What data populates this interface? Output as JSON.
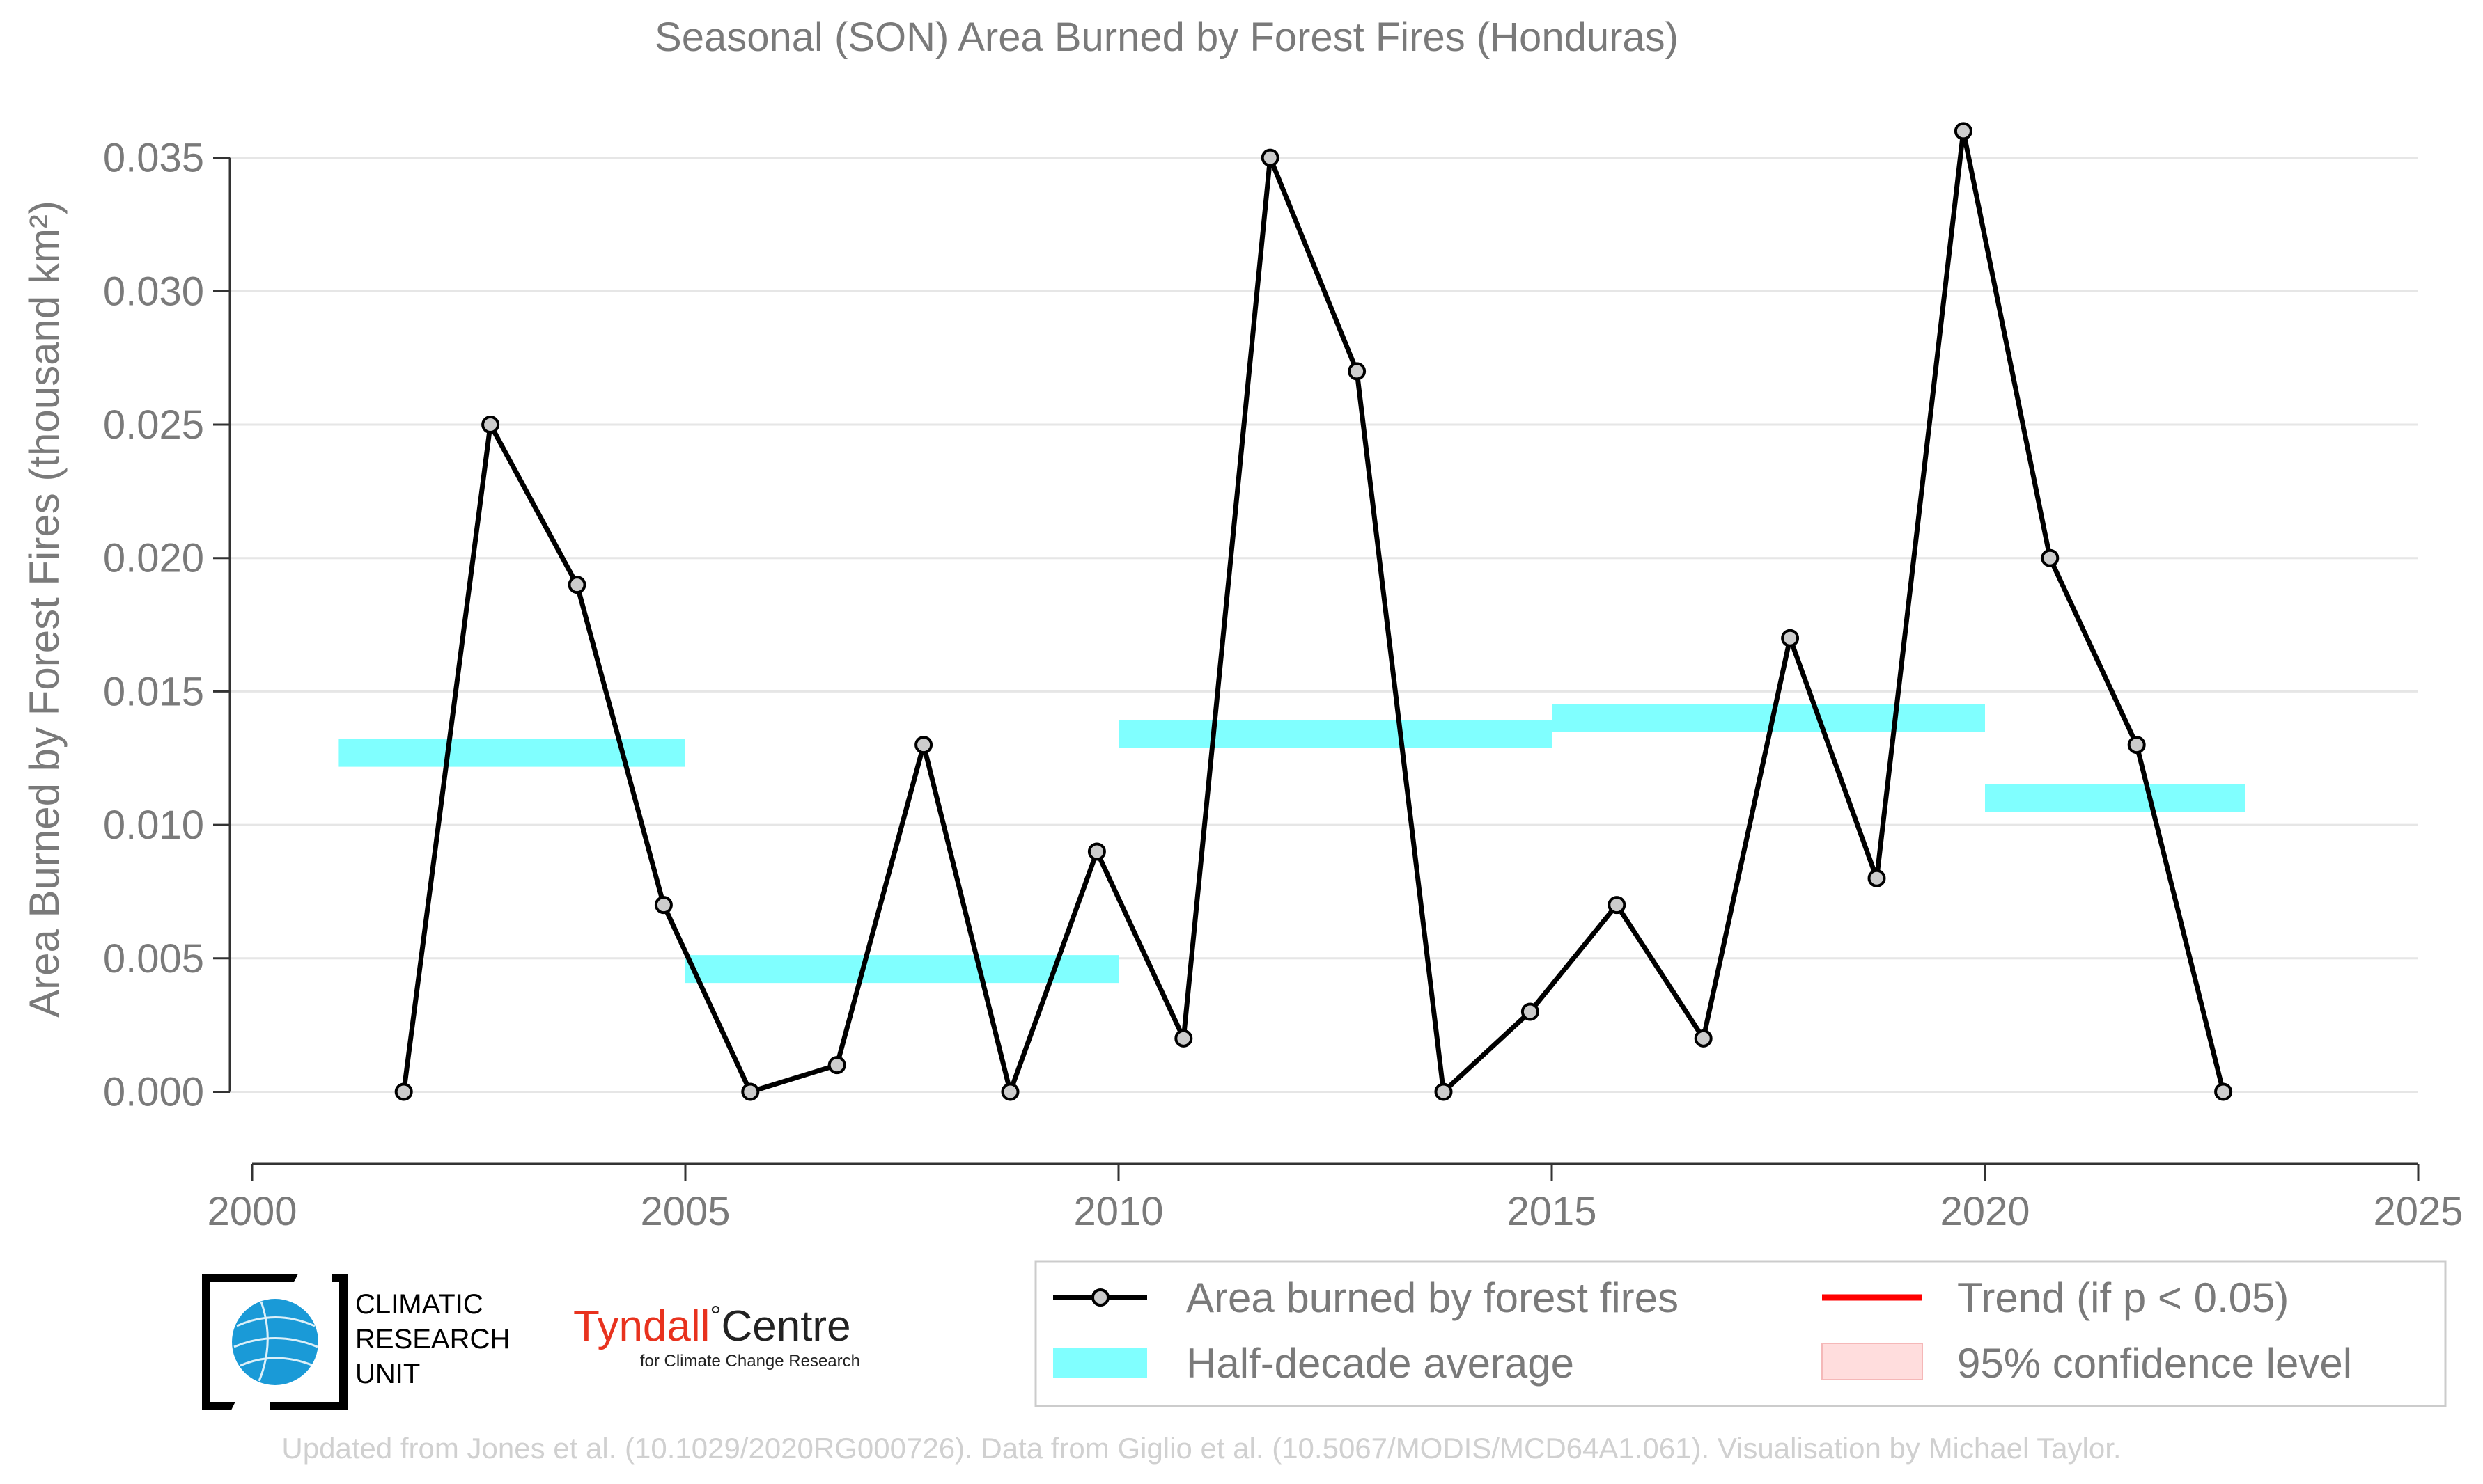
{
  "chart_data": {
    "type": "line",
    "title": "Seasonal (SON) Area Burned by Forest Fires (Honduras)",
    "xlabel": "",
    "ylabel": "Area Burned by Forest Fires (thousand km²)",
    "xlim": [
      2000,
      2025
    ],
    "ylim": [
      -0.0027,
      0.037
    ],
    "x_ticks": [
      2000,
      2005,
      2010,
      2015,
      2020,
      2025
    ],
    "y_ticks": [
      "0.000",
      "0.005",
      "0.010",
      "0.015",
      "0.020",
      "0.025",
      "0.030",
      "0.035"
    ],
    "grid": "horizontal",
    "series": [
      {
        "name": "Area burned by forest fires",
        "color": "#000000",
        "x": [
          2001.75,
          2002.75,
          2003.75,
          2004.75,
          2005.75,
          2006.75,
          2007.75,
          2008.75,
          2009.75,
          2010.75,
          2011.75,
          2012.75,
          2013.75,
          2014.75,
          2015.75,
          2016.75,
          2017.75,
          2018.75,
          2019.75,
          2020.75,
          2021.75,
          2022.75
        ],
        "y": [
          0.0,
          0.025,
          0.019,
          0.007,
          0.0,
          0.001,
          0.013,
          0.0,
          0.009,
          0.002,
          0.035,
          0.027,
          0.0,
          0.003,
          0.007,
          0.002,
          0.017,
          0.008,
          0.036,
          0.02,
          0.013,
          0.0
        ]
      }
    ],
    "half_decade_average": {
      "name": "Half-decade average",
      "color": "#80ffff",
      "segments": [
        {
          "x0": 2001,
          "x1": 2005,
          "y": 0.0127
        },
        {
          "x0": 2005,
          "x1": 2010,
          "y": 0.0046
        },
        {
          "x0": 2010,
          "x1": 2015,
          "y": 0.0134
        },
        {
          "x0": 2015,
          "x1": 2020,
          "y": 0.014
        },
        {
          "x0": 2020,
          "x1": 2023,
          "y": 0.011
        }
      ]
    },
    "legend": {
      "placement": "bottom-right",
      "entries": [
        {
          "label": "Area burned by forest fires",
          "kind": "line-marker",
          "color": "#000000"
        },
        {
          "label": "Trend (if p < 0.05)",
          "kind": "line",
          "color": "#ff0000"
        },
        {
          "label": "Half-decade average",
          "kind": "band",
          "color": "#80ffff"
        },
        {
          "label": "95% confidence level",
          "kind": "patch",
          "color": "#ffdddd"
        }
      ]
    }
  },
  "logos": {
    "cru": [
      "CLIMATIC",
      "RESEARCH",
      "UNIT"
    ],
    "tyndall_main_1": "Tyndall",
    "tyndall_degree": "°",
    "tyndall_main_2": "Centre",
    "tyndall_sub": "for Climate Change Research"
  },
  "credit": "Updated from Jones et al. (10.1029/2020RG000726). Data from Giglio et al. (10.5067/MODIS/MCD64A1.061). Visualisation by Michael Taylor."
}
